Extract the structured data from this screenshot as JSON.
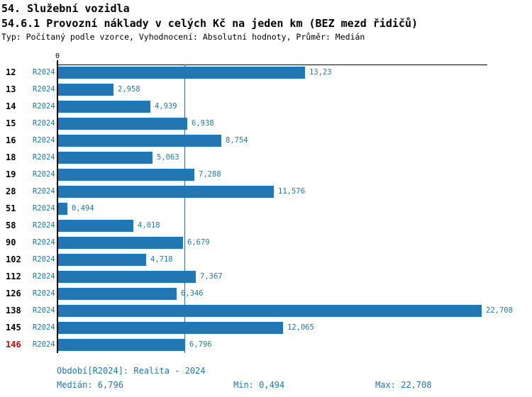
{
  "header": {
    "title": "54. Služební vozidla",
    "subtitle": "54.6.1 Provozní náklady v celých Kč na jeden km (BEZ mezd řidičů)",
    "meta": "Typ: Počítaný podle vzorce, Vyhodnocení: Absolutní hodnoty, Průměr: Medián"
  },
  "chart_data": {
    "type": "bar",
    "orientation": "horizontal",
    "title": "54.6.1 Provozní náklady v celých Kč na jeden km (BEZ mezd řidičů)",
    "categories": [
      "12",
      "13",
      "14",
      "15",
      "16",
      "18",
      "19",
      "28",
      "51",
      "58",
      "90",
      "102",
      "112",
      "126",
      "138",
      "145",
      "146"
    ],
    "series": [
      {
        "name": "R2024",
        "values": [
          13.23,
          2.958,
          4.939,
          6.938,
          8.754,
          5.063,
          7.288,
          11.576,
          0.494,
          4.018,
          6.679,
          4.718,
          7.367,
          6.346,
          22.708,
          12.065,
          6.796
        ]
      }
    ],
    "value_labels": [
      "13,23",
      "2,958",
      "4,939",
      "6,938",
      "8,754",
      "5,063",
      "7,288",
      "11,576",
      "0,494",
      "4,018",
      "6,679",
      "4,718",
      "7,367",
      "6,346",
      "22,708",
      "12,065",
      "6,796"
    ],
    "zero_tick_label": "0",
    "xlim": [
      0,
      23
    ],
    "grid": false,
    "legend": false,
    "median_value": 6.796,
    "median_line": true,
    "highlighted_category": "146",
    "bar_color": "#2077b4",
    "label_color": "#2077b4",
    "median_line_color": "#2077b4",
    "highlight_color": "#dd0000",
    "axis_color": "#000000"
  },
  "footer": {
    "period_note": "Období[R2024]: Realita - 2024",
    "median_label": "Medián: 6,796",
    "min_label": "Min: 0,494",
    "max_label": "Max: 22,708"
  }
}
